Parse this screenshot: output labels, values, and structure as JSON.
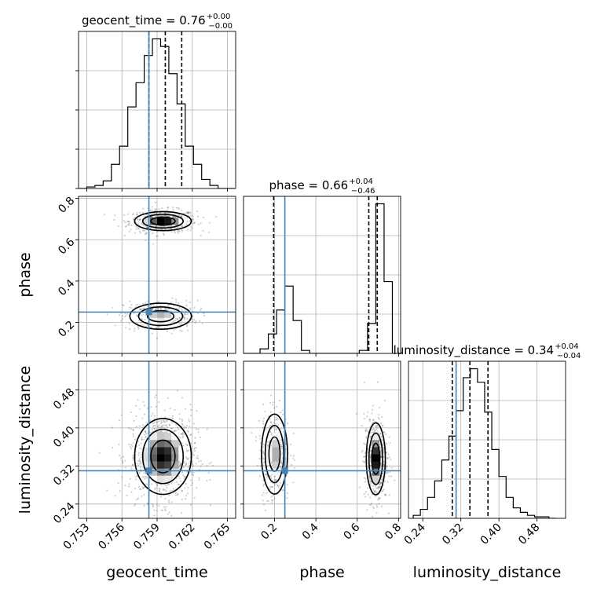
{
  "chart_data": {
    "type": "corner",
    "params": [
      "geocent_time",
      "phase",
      "luminosity_distance"
    ],
    "truths": {
      "geocent_time": 0.7583,
      "phase": 0.25,
      "luminosity_distance": 0.31
    },
    "colors": {
      "truth": "#4682b4",
      "hist": "#000000",
      "grid": "#b0b0b0",
      "scatter": "#555555"
    },
    "titles": [
      {
        "param": "geocent_time",
        "text": "geocent_time = 0.76",
        "sup": "+0.00",
        "sub": "−0.00"
      },
      {
        "param": "phase",
        "text": "phase = 0.66",
        "sup": "+0.04",
        "sub": "−0.46"
      },
      {
        "param": "luminosity_distance",
        "text": "luminosity_distance = 0.34",
        "sup": "+0.04",
        "sub": "−0.04"
      }
    ],
    "axes": {
      "geocent_time": {
        "range": [
          0.7523,
          0.7657
        ],
        "ticks": [
          0.753,
          0.756,
          0.759,
          0.762,
          0.765
        ],
        "tick_labels": [
          "0.753",
          "0.756",
          "0.759",
          "0.762",
          "0.765"
        ],
        "label": "geocent_time"
      },
      "phase": {
        "range": [
          0.05,
          0.81
        ],
        "ticks": [
          0.2,
          0.4,
          0.6,
          0.8
        ],
        "tick_labels": [
          "0.2",
          "0.4",
          "0.6",
          "0.8"
        ],
        "label": "phase"
      },
      "luminosity_distance": {
        "range": [
          0.21,
          0.54
        ],
        "ticks": [
          0.24,
          0.32,
          0.4,
          0.48
        ],
        "tick_labels": [
          "0.24",
          "0.32",
          "0.40",
          "0.48"
        ],
        "label": "luminosity_distance"
      }
    },
    "marginals": {
      "geocent_time": {
        "quantiles": [
          0.7583,
          0.7597,
          0.7611
        ],
        "bins": [
          0.7523,
          0.753,
          0.7537,
          0.7544,
          0.7551,
          0.7558,
          0.7565,
          0.7572,
          0.7579,
          0.7586,
          0.7593,
          0.76,
          0.7607,
          0.7614,
          0.7621,
          0.7628,
          0.7635,
          0.7642,
          0.7649,
          0.7656
        ],
        "counts": [
          0,
          1,
          2,
          5,
          16,
          28,
          54,
          70,
          88,
          99,
          94,
          76,
          56,
          28,
          16,
          6,
          2,
          0,
          0
        ]
      },
      "phase": {
        "quantiles": [
          0.196,
          0.656,
          0.697
        ],
        "bins": [
          0.05,
          0.09,
          0.13,
          0.17,
          0.21,
          0.25,
          0.29,
          0.33,
          0.37,
          0.41,
          0.45,
          0.49,
          0.53,
          0.57,
          0.61,
          0.65,
          0.69,
          0.73,
          0.77,
          0.81
        ],
        "counts": [
          0,
          0,
          3,
          13,
          29,
          45,
          22,
          2,
          0,
          0,
          0,
          0,
          0,
          0,
          2,
          20,
          100,
          48,
          0
        ]
      },
      "luminosity_distance": {
        "quantiles": [
          0.302,
          0.339,
          0.377
        ],
        "bins": [
          0.22,
          0.235,
          0.25,
          0.265,
          0.28,
          0.295,
          0.31,
          0.325,
          0.34,
          0.355,
          0.37,
          0.385,
          0.4,
          0.415,
          0.43,
          0.445,
          0.46,
          0.475,
          0.49,
          0.505,
          0.52
        ],
        "counts": [
          2,
          6,
          14,
          25,
          39,
          55,
          72,
          94,
          100,
          91,
          71,
          46,
          28,
          14,
          7,
          4,
          2,
          1,
          1,
          0
        ]
      }
    },
    "joint": [
      {
        "x": "geocent_time",
        "y": "phase",
        "modes": [
          {
            "cx": 0.7595,
            "cy": 0.69,
            "sx": 0.00115,
            "sy": 0.022,
            "w": 0.62
          },
          {
            "cx": 0.7593,
            "cy": 0.23,
            "sx": 0.00125,
            "sy": 0.03,
            "w": 0.38
          }
        ]
      },
      {
        "x": "geocent_time",
        "y": "luminosity_distance",
        "modes": [
          {
            "cx": 0.7595,
            "cy": 0.34,
            "sx": 0.00115,
            "sy": 0.038,
            "w": 1.0
          }
        ]
      },
      {
        "x": "phase",
        "y": "luminosity_distance",
        "modes": [
          {
            "cx": 0.69,
            "cy": 0.335,
            "sx": 0.022,
            "sy": 0.036,
            "w": 0.62
          },
          {
            "cx": 0.2,
            "cy": 0.345,
            "sx": 0.03,
            "sy": 0.04,
            "w": 0.38
          }
        ]
      }
    ]
  }
}
